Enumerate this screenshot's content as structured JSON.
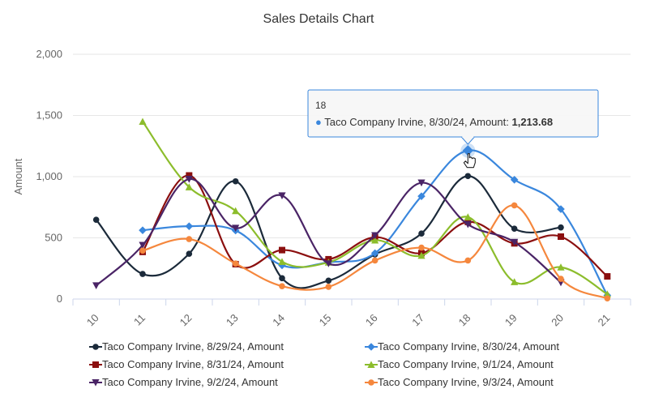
{
  "chart_data": {
    "type": "line",
    "title": "Sales Details Chart",
    "xlabel": "",
    "ylabel": "Amount",
    "x": [
      "10",
      "11",
      "12",
      "13",
      "14",
      "15",
      "16",
      "17",
      "18",
      "19",
      "20",
      "21"
    ],
    "ylim": [
      0,
      2000
    ],
    "yticks": [
      0,
      500,
      1000,
      1500,
      2000
    ],
    "ytick_labels": [
      "0",
      "500",
      "1,000",
      "1,500",
      "2,000"
    ],
    "grid": true,
    "legend_position": "bottom",
    "series": [
      {
        "name": "Taco Company Irvine, 8/29/24, Amount",
        "color": "#1b2a3a",
        "marker": "circle",
        "values": [
          648,
          205,
          370,
          962,
          170,
          150,
          365,
          535,
          1005,
          575,
          585,
          null
        ]
      },
      {
        "name": "Taco Company Irvine, 8/30/24, Amount",
        "color": "#3a87dd",
        "marker": "diamond",
        "values": [
          null,
          562,
          595,
          560,
          275,
          300,
          375,
          840,
          1213.68,
          975,
          735,
          30
        ]
      },
      {
        "name": "Taco Company Irvine, 8/31/24, Amount",
        "color": "#8b0f0f",
        "marker": "square",
        "values": [
          null,
          385,
          1010,
          285,
          400,
          325,
          505,
          375,
          630,
          455,
          510,
          185
        ]
      },
      {
        "name": "Taco Company Irvine, 9/1/24, Amount",
        "color": "#8cbd2c",
        "marker": "triangle",
        "values": [
          null,
          1450,
          915,
          720,
          305,
          300,
          480,
          355,
          670,
          140,
          260,
          40
        ]
      },
      {
        "name": "Taco Company Irvine, 9/2/24, Amount",
        "color": "#4a2466",
        "marker": "triangle-down",
        "values": [
          110,
          440,
          980,
          580,
          845,
          290,
          520,
          950,
          610,
          465,
          135,
          null
        ]
      },
      {
        "name": "Taco Company Irvine, 9/3/24, Amount",
        "color": "#f5873d",
        "marker": "circle",
        "values": [
          null,
          395,
          490,
          290,
          105,
          100,
          315,
          420,
          315,
          765,
          165,
          5
        ]
      }
    ],
    "tooltip": {
      "header": "18",
      "series_label": "Taco Company Irvine, 8/30/24, Amount: ",
      "value_label": "1,213.68",
      "bullet": "●",
      "series_index": 1,
      "point_index": 8,
      "color": "#3a87dd"
    }
  }
}
